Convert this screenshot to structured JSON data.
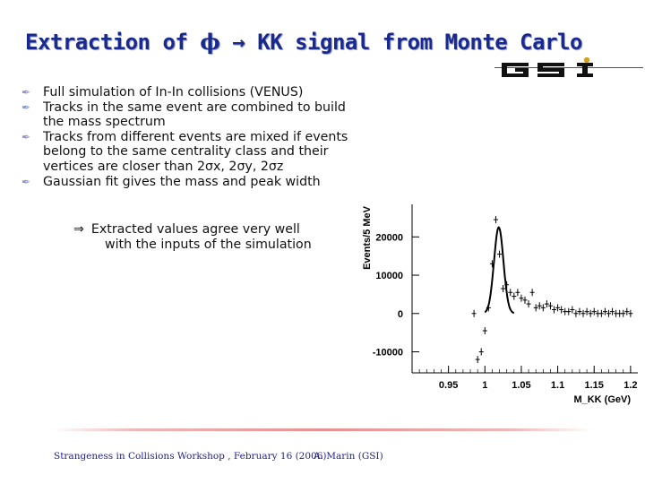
{
  "slide": {
    "title": {
      "part1": "Extraction of ",
      "phi": "ϕ",
      "arrow": " → ",
      "part2": "KK signal from Monte Carlo"
    },
    "logo_text": "GSI",
    "bullets": [
      "Full simulation of In-In collisions (VENUS)",
      "Tracks in the same event are combined to build the mass spectrum",
      "Tracks from different events are mixed if events belong to the same centrality class and their vertices are closer than 2σx, 2σy, 2σz",
      "Gaussian fit gives the mass and peak width"
    ],
    "conclusion": {
      "arrow": "⇒",
      "line1": "Extracted values agree very well",
      "line2": "with the inputs of the simulation"
    },
    "footer": {
      "left": "Strangeness in Collisions Workshop , February 16 (2006)",
      "right": "A. Marin (GSI)"
    }
  },
  "colors": {
    "title": "#1a2a8c",
    "bullet_mark": "#8a98d0",
    "footer_text": "#222288",
    "footer_rule": "#e89090",
    "logo": "#111111",
    "logo_dot": "#d6a020"
  },
  "chart_data": {
    "type": "scatter",
    "title": "",
    "xlabel": "M_KK (GeV)",
    "ylabel": "Events/5 MeV",
    "xlim": [
      0.9,
      1.21
    ],
    "ylim": [
      -15500,
      28500
    ],
    "xticks": [
      0.95,
      1,
      1.05,
      1.1,
      1.15,
      1.2
    ],
    "xtick_labels": [
      "0.95",
      "1",
      "1.05",
      "1.1",
      "1.15",
      "1.2"
    ],
    "yticks": [
      -10000,
      0,
      10000,
      20000
    ],
    "ytick_labels": [
      "-10000",
      "0",
      "10000",
      "20000"
    ],
    "grid": false,
    "series": [
      {
        "kind": "points-with-errors",
        "x": [
          0.985,
          0.99,
          0.995,
          1.0,
          1.005,
          1.01,
          1.015,
          1.02,
          1.025,
          1.03,
          1.035,
          1.04,
          1.045,
          1.05,
          1.055,
          1.06,
          1.065,
          1.07,
          1.075,
          1.08,
          1.085,
          1.09,
          1.095,
          1.1,
          1.105,
          1.11,
          1.115,
          1.12,
          1.125,
          1.13,
          1.135,
          1.14,
          1.145,
          1.15,
          1.155,
          1.16,
          1.165,
          1.17,
          1.175,
          1.18,
          1.185,
          1.19,
          1.195,
          1.2
        ],
        "y": [
          0,
          -12000,
          -10000,
          -4500,
          1500,
          13000,
          24500,
          15500,
          6500,
          7500,
          5500,
          4500,
          5500,
          4000,
          3500,
          2500,
          5500,
          1500,
          2000,
          1500,
          2500,
          2000,
          1000,
          1500,
          1000,
          500,
          500,
          1000,
          0,
          500,
          0,
          500,
          0,
          500,
          0,
          0,
          500,
          0,
          500,
          0,
          0,
          0,
          500,
          0
        ]
      },
      {
        "kind": "gaussian-fit",
        "mean": 1.019,
        "sigma": 0.0065,
        "amplitude": 22500,
        "xrange": [
          1.0,
          1.04
        ]
      }
    ]
  }
}
